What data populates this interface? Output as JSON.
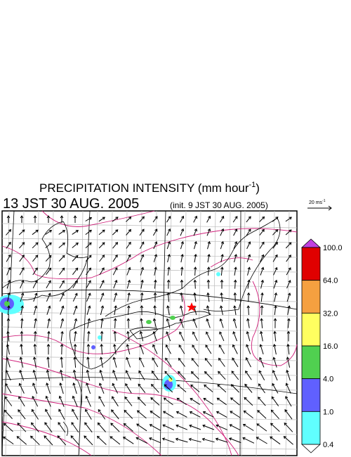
{
  "title": {
    "main": "PRECIPITATION INTENSITY (mm hour",
    "superscript": "-1",
    "close": ")"
  },
  "time": {
    "valid": "13 JST 30 AUG. 2005",
    "init": "(init. 9 JST 30 AUG. 2005)"
  },
  "wind_scale": {
    "label": "20 ms",
    "superscript": "-1"
  },
  "colorbar": {
    "levels": [
      "100.0",
      "64.0",
      "32.0",
      "16.0",
      "4.0",
      "1.0",
      "0.4"
    ]
  }
}
